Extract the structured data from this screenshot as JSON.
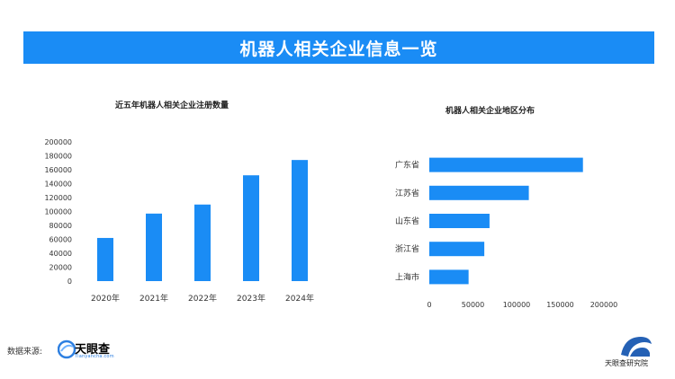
{
  "colors": {
    "accent": "#1a8cf5",
    "bar": "#1a8cf5",
    "banner": "#1a8cf5"
  },
  "banner": {
    "title": "机器人相关企业信息一览"
  },
  "chart_data": [
    {
      "type": "bar",
      "title": "近五年机器人相关企业注册数量",
      "categories": [
        "2020年",
        "2021年",
        "2022年",
        "2023年",
        "2024年"
      ],
      "values": [
        62000,
        97000,
        110000,
        152000,
        174000
      ],
      "ylim": [
        0,
        200000
      ],
      "yticks": [
        0,
        20000,
        40000,
        60000,
        80000,
        100000,
        120000,
        140000,
        160000,
        180000,
        200000
      ],
      "grid": false,
      "legend": "none"
    },
    {
      "type": "bar",
      "orientation": "horizontal",
      "title": "机器人相关企业地区分布",
      "categories": [
        "广东省",
        "江苏省",
        "山东省",
        "浙江省",
        "上海市"
      ],
      "values": [
        176000,
        114000,
        69000,
        63000,
        45000
      ],
      "xlim": [
        0,
        200000
      ],
      "xticks": [
        0,
        50000,
        100000,
        150000,
        200000
      ],
      "grid": false,
      "legend": "none"
    }
  ],
  "footer": {
    "source_label": "数据来源:",
    "source_brand": "天眼查",
    "source_domain": "Tianyancha.com",
    "institute": "天眼查研究院"
  }
}
